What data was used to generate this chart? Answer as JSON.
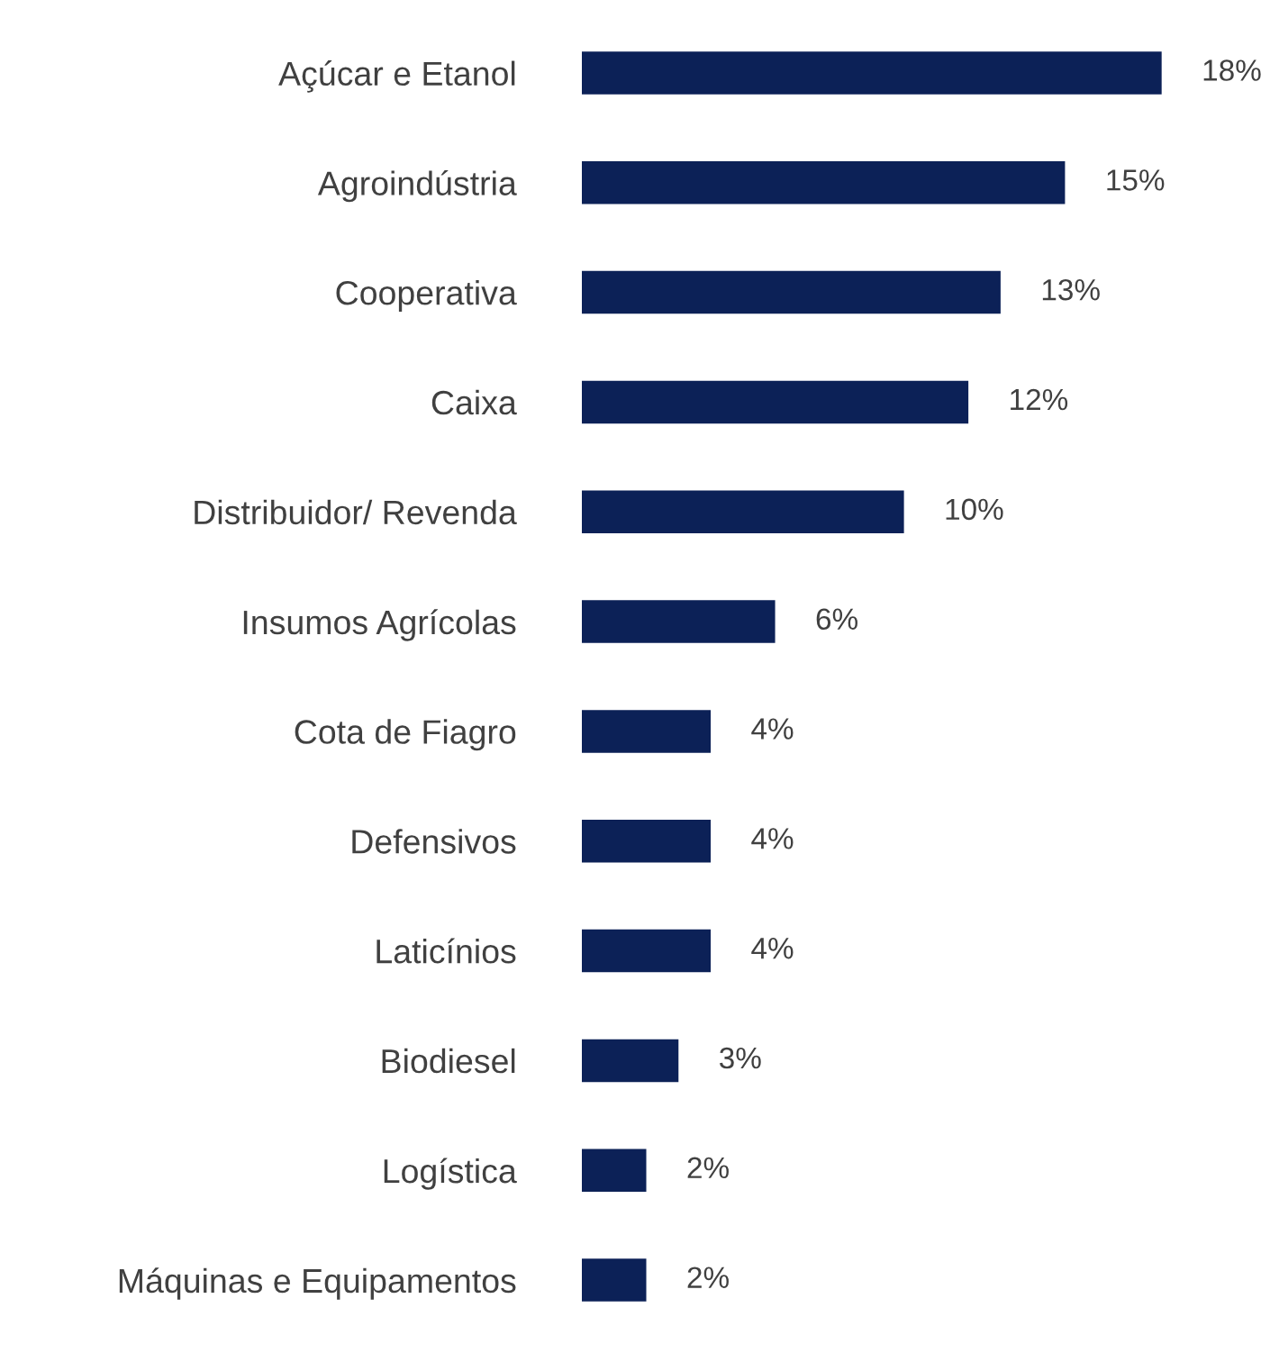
{
  "chart_data": {
    "type": "bar",
    "orientation": "horizontal",
    "categories": [
      "Açúcar e Etanol",
      "Agroindústria",
      "Cooperativa",
      "Caixa",
      "Distribuidor/ Revenda",
      "Insumos Agrícolas",
      "Cota de Fiagro",
      "Defensivos",
      "Laticínios",
      "Biodiesel",
      "Logística",
      "Máquinas e Equipamentos"
    ],
    "values": [
      18,
      15,
      13,
      12,
      10,
      6,
      4,
      4,
      4,
      3,
      2,
      2
    ],
    "value_labels": [
      "18%",
      "15%",
      "13%",
      "12%",
      "10%",
      "6%",
      "4%",
      "4%",
      "4%",
      "3%",
      "2%",
      "2%"
    ],
    "color": "#0c2157",
    "grid": false,
    "legend": false
  }
}
